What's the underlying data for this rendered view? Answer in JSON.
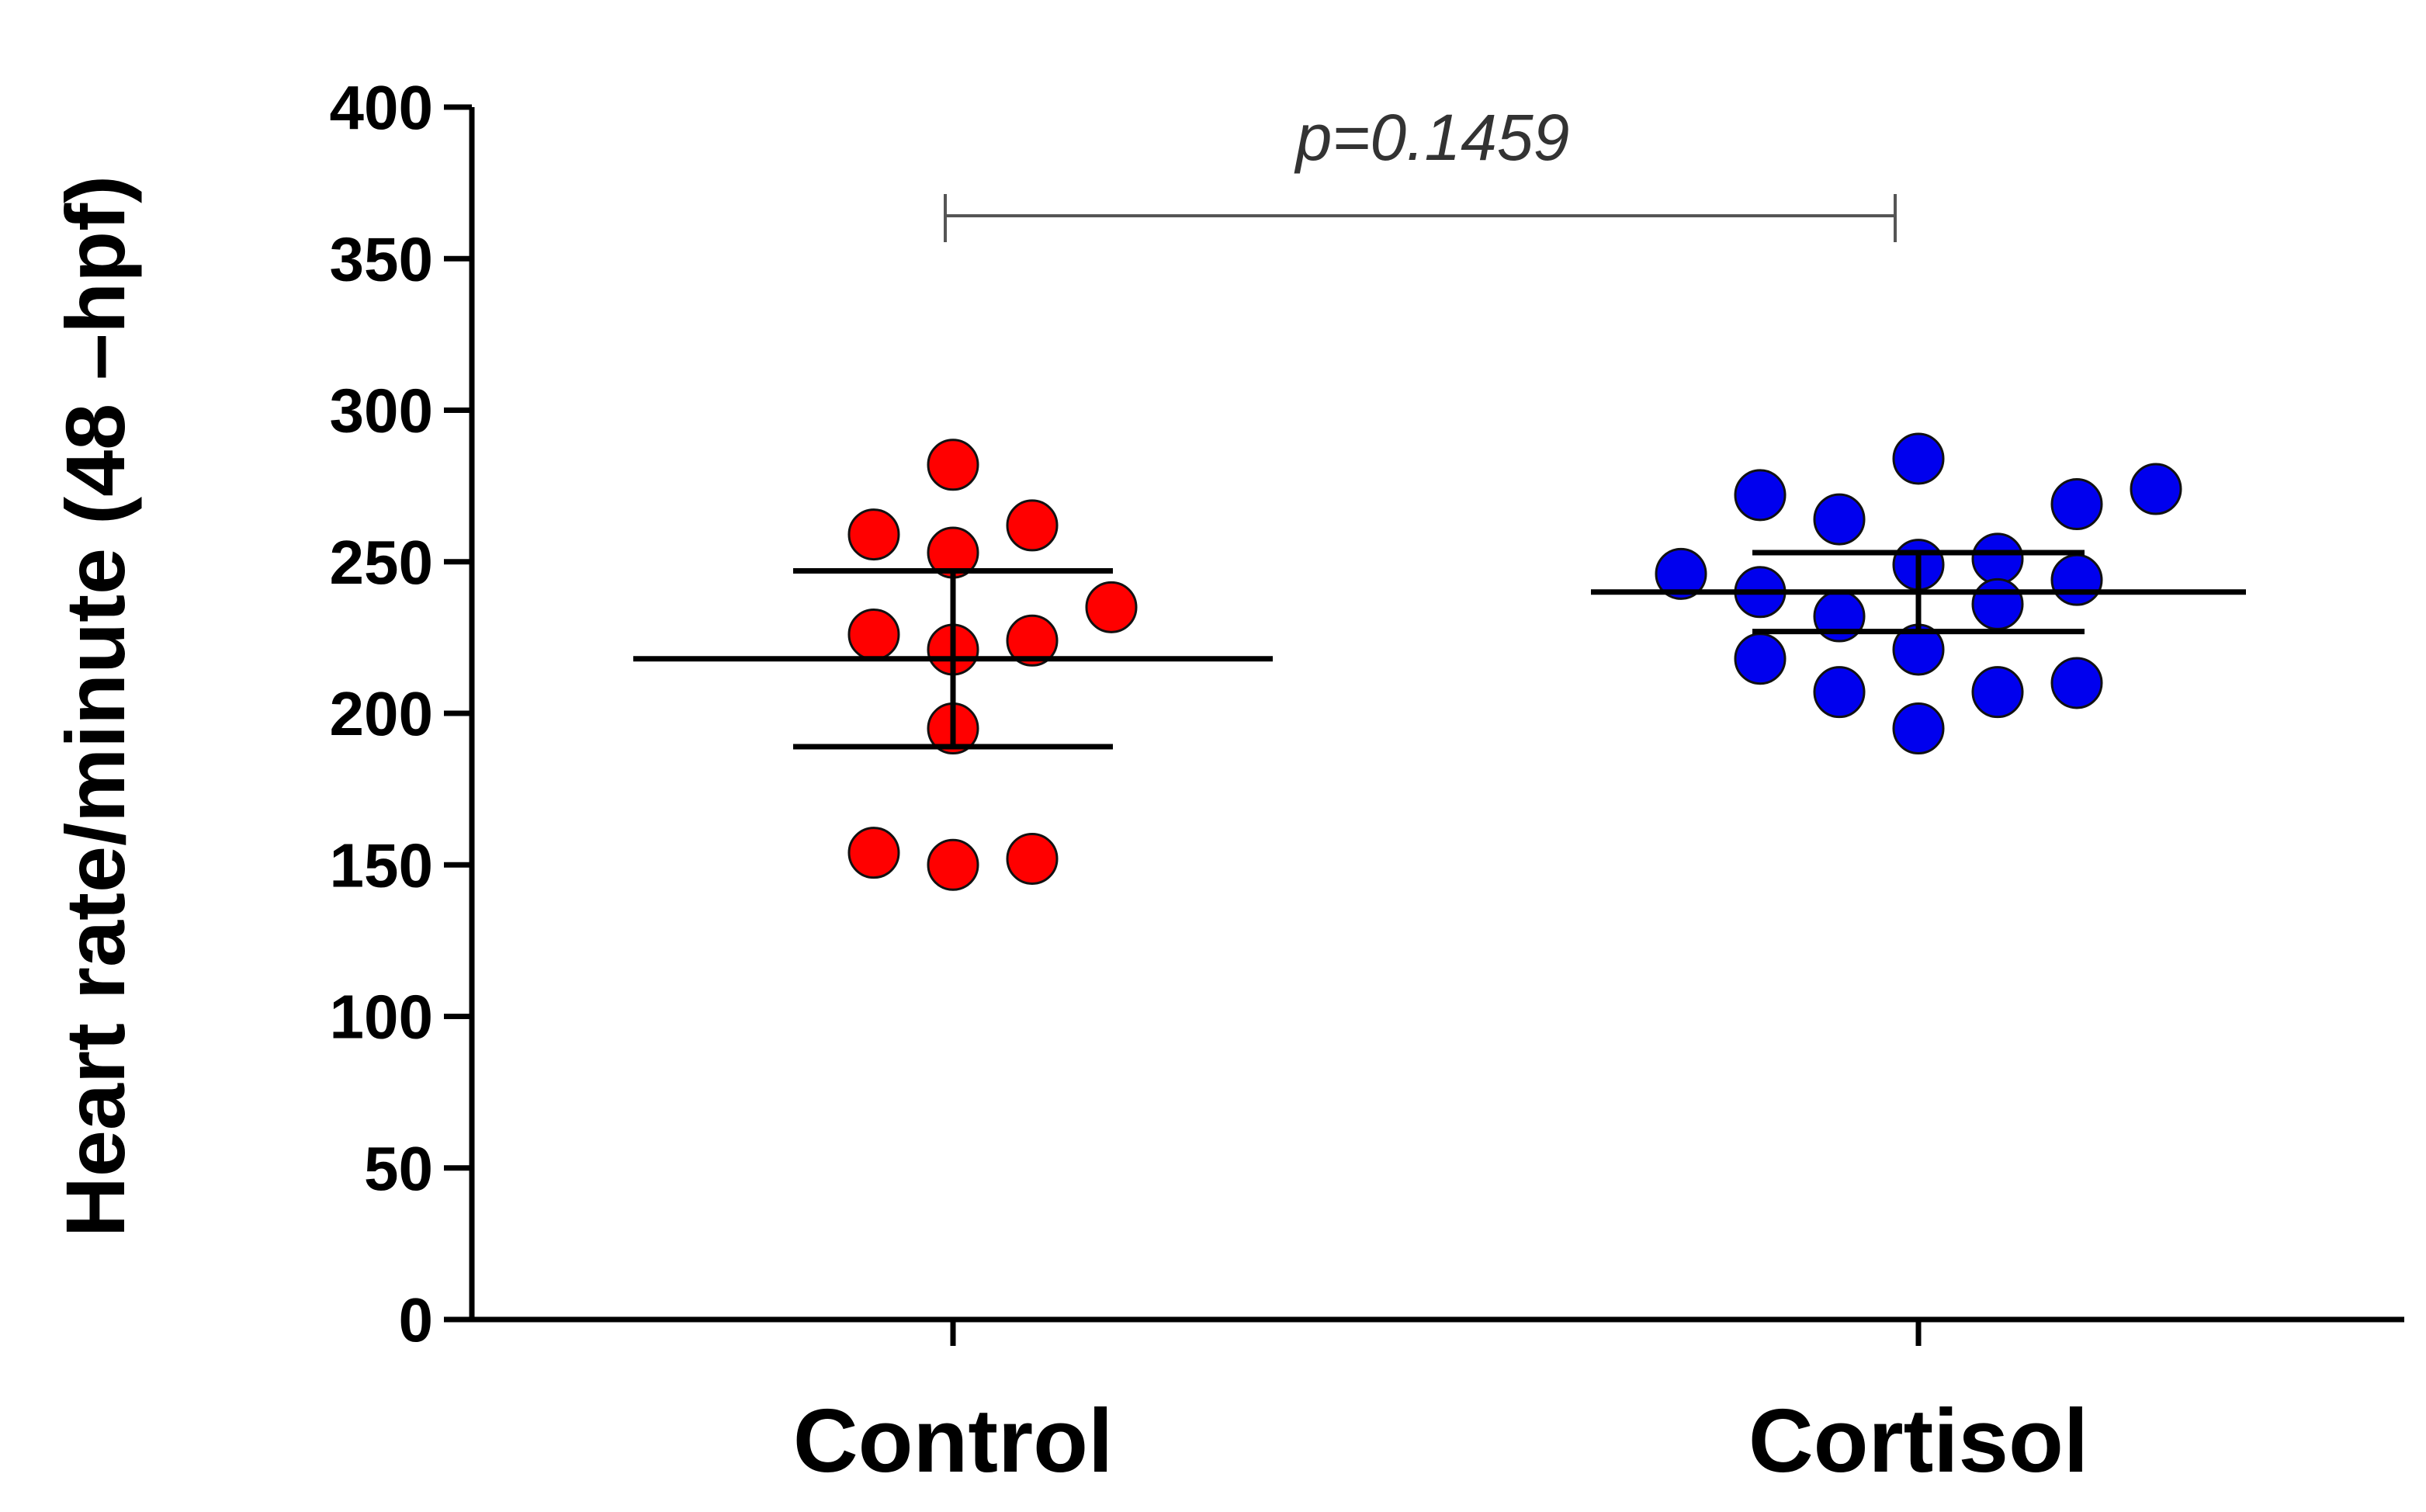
{
  "chart_data": {
    "type": "scatter",
    "ylabel": "Heart rate/minute (48 –hpf)",
    "xlabel": "",
    "ylim": [
      0,
      400
    ],
    "yticks": [
      "0",
      "50",
      "100",
      "150",
      "200",
      "250",
      "300",
      "350",
      "400"
    ],
    "categories": [
      "Control",
      "Cortisol"
    ],
    "grid": false,
    "legend": "none",
    "annotation": {
      "text": "p=0.1459",
      "between": [
        "Control",
        "Cortisol"
      ]
    },
    "series": [
      {
        "category": "Control",
        "color": "#ff0000",
        "mean": 218,
        "error_upper": 247,
        "error_lower": 189,
        "points": [
          {
            "offset": 0,
            "y": 282
          },
          {
            "offset": -1,
            "y": 259
          },
          {
            "offset": 1,
            "y": 262
          },
          {
            "offset": 0,
            "y": 253
          },
          {
            "offset": 2,
            "y": 235
          },
          {
            "offset": -1,
            "y": 226
          },
          {
            "offset": 0,
            "y": 221
          },
          {
            "offset": 1,
            "y": 224
          },
          {
            "offset": 0,
            "y": 195
          },
          {
            "offset": -1,
            "y": 154
          },
          {
            "offset": 0,
            "y": 150
          },
          {
            "offset": 1,
            "y": 152
          }
        ]
      },
      {
        "category": "Cortisol",
        "color": "#0000ee",
        "mean": 240,
        "error_upper": 253,
        "error_lower": 227,
        "points": [
          {
            "offset": 0,
            "y": 284
          },
          {
            "offset": -2,
            "y": 272
          },
          {
            "offset": -1,
            "y": 264
          },
          {
            "offset": 2,
            "y": 269
          },
          {
            "offset": 3,
            "y": 274
          },
          {
            "offset": -3,
            "y": 246
          },
          {
            "offset": 0,
            "y": 249
          },
          {
            "offset": 1,
            "y": 251
          },
          {
            "offset": 2,
            "y": 244
          },
          {
            "offset": -2,
            "y": 240
          },
          {
            "offset": -1,
            "y": 232
          },
          {
            "offset": 0,
            "y": 221
          },
          {
            "offset": 1,
            "y": 236
          },
          {
            "offset": -2,
            "y": 218
          },
          {
            "offset": -1,
            "y": 207
          },
          {
            "offset": 1,
            "y": 207
          },
          {
            "offset": 2,
            "y": 210
          },
          {
            "offset": 0,
            "y": 195
          }
        ]
      }
    ]
  }
}
